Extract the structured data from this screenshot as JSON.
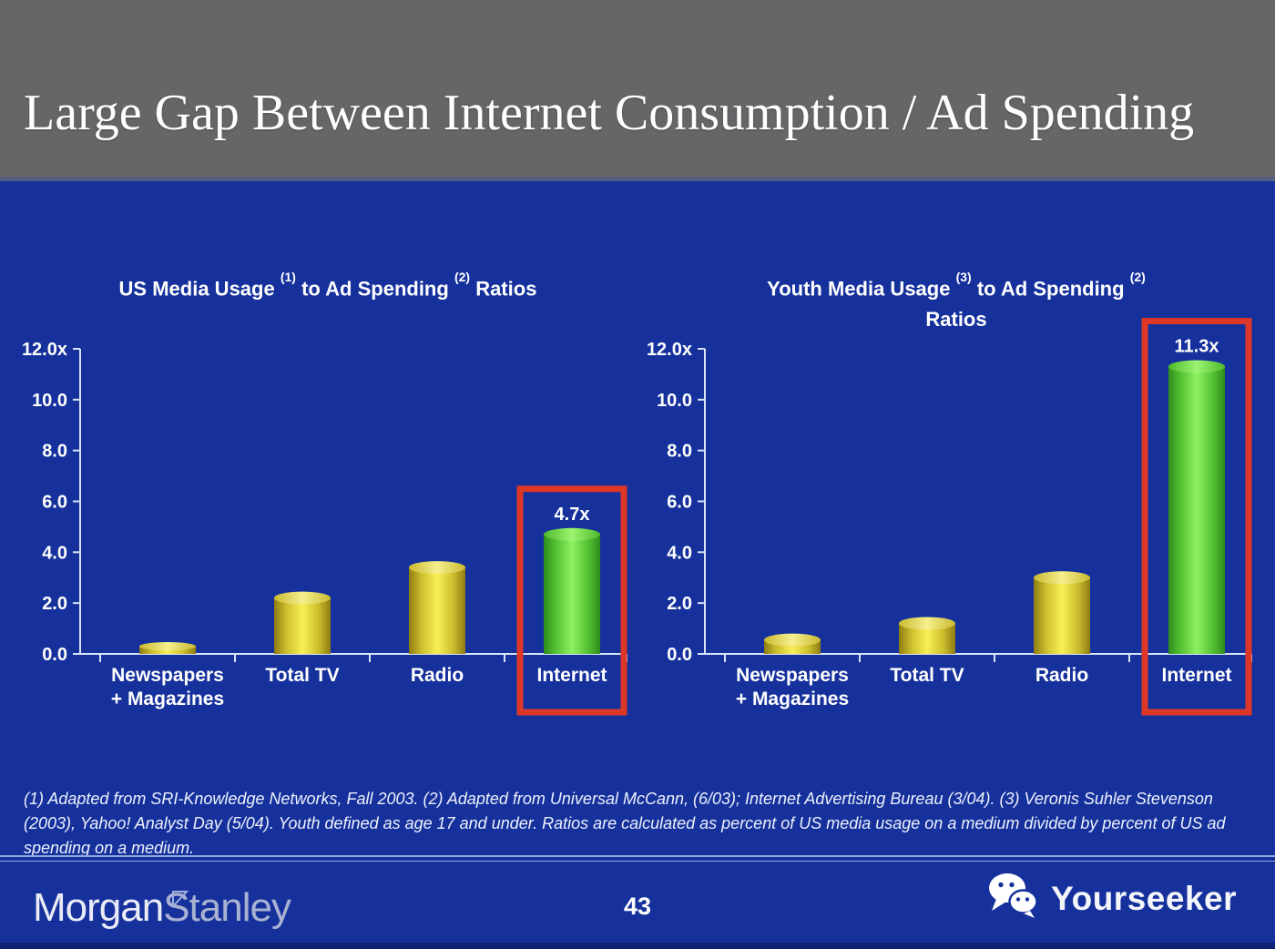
{
  "slide": {
    "title": "Large Gap Between Internet Consumption / Ad Spending",
    "page_number": "43"
  },
  "charts": {
    "left": {
      "title_pre": "US Media Usage",
      "sup1": "(1)",
      "title_mid": "to Ad Spending",
      "sup2": "(2)",
      "title_post": "Ratios"
    },
    "right": {
      "title_pre": "Youth Media Usage",
      "sup1": "(3)",
      "title_mid": "to Ad Spending",
      "sup2": "(2)",
      "title_line2": "Ratios"
    }
  },
  "chart_data": [
    {
      "type": "bar",
      "title": "US Media Usage (1) to Ad Spending (2) Ratios",
      "categories": [
        "Newspapers + Magazines",
        "Total TV",
        "Radio",
        "Internet"
      ],
      "category_label_lines": [
        [
          "Newspapers",
          "+ Magazines"
        ],
        [
          "Total TV"
        ],
        [
          "Radio"
        ],
        [
          "Internet"
        ]
      ],
      "values": [
        0.3,
        2.2,
        3.4,
        4.7
      ],
      "bar_colors": [
        "yellow",
        "yellow",
        "yellow",
        "green"
      ],
      "highlight_index": 3,
      "data_labels": [
        {
          "index": 3,
          "text": "4.7x"
        }
      ],
      "xlabel": "",
      "ylabel": "",
      "ylim": [
        0,
        12
      ],
      "yticks": [
        "12.0x",
        "10.0",
        "8.0",
        "6.0",
        "4.0",
        "2.0",
        "0.0"
      ],
      "grid": false,
      "legend": false
    },
    {
      "type": "bar",
      "title": "Youth Media Usage (3) to Ad Spending (2) Ratios",
      "categories": [
        "Newspapers + Magazines",
        "Total TV",
        "Radio",
        "Internet"
      ],
      "category_label_lines": [
        [
          "Newspapers",
          "+ Magazines"
        ],
        [
          "Total TV"
        ],
        [
          "Radio"
        ],
        [
          "Internet"
        ]
      ],
      "values": [
        0.55,
        1.2,
        3.0,
        11.3
      ],
      "bar_colors": [
        "yellow",
        "yellow",
        "yellow",
        "green"
      ],
      "highlight_index": 3,
      "data_labels": [
        {
          "index": 3,
          "text": "11.3x"
        }
      ],
      "xlabel": "",
      "ylabel": "",
      "ylim": [
        0,
        12
      ],
      "yticks": [
        "12.0x",
        "10.0",
        "8.0",
        "6.0",
        "4.0",
        "2.0",
        "0.0"
      ],
      "grid": false,
      "legend": false
    }
  ],
  "footnote": {
    "text": "(1) Adapted from SRI-Knowledge Networks, Fall 2003.  (2) Adapted from Universal McCann, (6/03); Internet Advertising Bureau (3/04). (3) Veronis Suhler Stevenson (2003), Yahoo! Analyst Day (5/04).  Youth defined as age 17 and under.  Ratios are calculated as percent of US media usage on a medium divided by percent of US ad spending on a medium."
  },
  "footer": {
    "brand_part1": "Morgan",
    "brand_part2": "Stanley",
    "watermark": "Yourseeker"
  },
  "colors": {
    "slide_blue": "#16319C",
    "header_gray": "#666669",
    "highlight_red": "#DC3727",
    "axis_line": "#D8E4F6",
    "text_white": "#FFFFFF",
    "yellow_edge": "#8E7C12",
    "yellow_mid": "#CDBE2E",
    "yellow_center": "#F8F055",
    "yellow_top_light": "#F6EF8E",
    "yellow_top_dark": "#C9BA30",
    "green_edge": "#2F8C1C",
    "green_mid": "#55C233",
    "green_center": "#8FF162",
    "green_top_light": "#9CF470",
    "green_top_dark": "#4DBA2D",
    "divider": "#8FA8DC"
  }
}
